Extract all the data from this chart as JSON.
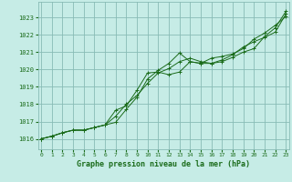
{
  "x": [
    0,
    1,
    2,
    3,
    4,
    5,
    6,
    7,
    8,
    9,
    10,
    11,
    12,
    13,
    14,
    15,
    16,
    17,
    18,
    19,
    20,
    21,
    22,
    23
  ],
  "line1": [
    1016.0,
    1016.15,
    1016.35,
    1016.5,
    1016.5,
    1016.65,
    1016.8,
    1017.3,
    1018.0,
    1018.5,
    1019.2,
    1019.8,
    1020.05,
    1020.45,
    1020.65,
    1020.45,
    1020.35,
    1020.45,
    1020.7,
    1021.0,
    1021.2,
    1021.9,
    1022.4,
    1023.35
  ],
  "line2": [
    1016.0,
    1016.15,
    1016.35,
    1016.5,
    1016.5,
    1016.65,
    1016.8,
    1016.95,
    1017.7,
    1018.4,
    1019.45,
    1019.95,
    1020.35,
    1020.95,
    1020.45,
    1020.35,
    1020.35,
    1020.55,
    1020.85,
    1021.3,
    1021.6,
    1021.85,
    1022.15,
    1023.2
  ],
  "line3": [
    1016.0,
    1016.15,
    1016.35,
    1016.5,
    1016.5,
    1016.65,
    1016.8,
    1017.65,
    1017.9,
    1018.8,
    1019.8,
    1019.85,
    1019.7,
    1019.85,
    1020.45,
    1020.35,
    1020.65,
    1020.75,
    1020.9,
    1021.2,
    1021.75,
    1022.1,
    1022.55,
    1023.05
  ],
  "line_color": "#1a6b1a",
  "bg_color": "#c6ece6",
  "grid_color": "#88bbb5",
  "text_color": "#1a6b1a",
  "ylabel_vals": [
    1016,
    1017,
    1018,
    1019,
    1020,
    1021,
    1022,
    1023
  ],
  "xlabel": "Graphe pression niveau de la mer (hPa)",
  "ylim": [
    1015.4,
    1023.9
  ],
  "xlim": [
    -0.3,
    23.3
  ]
}
